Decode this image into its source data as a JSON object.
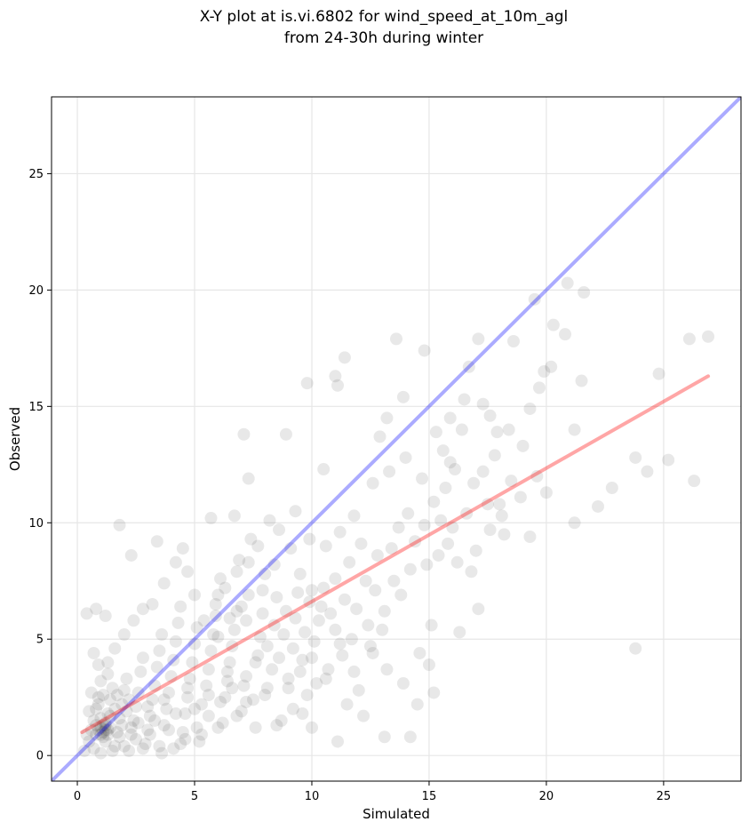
{
  "chart_data": {
    "type": "scatter",
    "title_line1": "X-Y plot at is.vi.6802 for wind_speed_at_10m_agl",
    "title_line2": "from 24-30h during winter",
    "xlabel": "Simulated",
    "ylabel": "Observed",
    "xlim": [
      -1.1,
      28.3
    ],
    "ylim": [
      -1.1,
      28.3
    ],
    "xticks": [
      0,
      5,
      10,
      15,
      20,
      25
    ],
    "yticks": [
      0,
      5,
      10,
      15,
      20,
      25
    ],
    "xtick_labels": [
      "0",
      "5",
      "10",
      "15",
      "20",
      "25"
    ],
    "ytick_labels": [
      "0",
      "5",
      "10",
      "15",
      "20",
      "25"
    ],
    "grid": true,
    "point_color": "#000000",
    "identity_line": {
      "color": "#0000ff",
      "x": [
        -1.1,
        28.3
      ],
      "y": [
        -1.1,
        28.3
      ]
    },
    "fit_line": {
      "color": "#ff0000",
      "x": [
        0.2,
        26.9
      ],
      "y": [
        1.0,
        16.3
      ]
    },
    "points": [
      [
        0.4,
        6.1
      ],
      [
        0.8,
        6.3
      ],
      [
        1.2,
        6.0
      ],
      [
        0.7,
        4.4
      ],
      [
        0.9,
        3.9
      ],
      [
        1.3,
        3.5
      ],
      [
        1.8,
        9.9
      ],
      [
        2.3,
        8.6
      ],
      [
        3.4,
        9.2
      ],
      [
        4.5,
        8.9
      ],
      [
        5.7,
        10.2
      ],
      [
        6.7,
        10.3
      ],
      [
        7.3,
        11.9
      ],
      [
        7.1,
        13.8
      ],
      [
        8.9,
        13.8
      ],
      [
        9.8,
        16.0
      ],
      [
        10.5,
        12.3
      ],
      [
        11.0,
        16.3
      ],
      [
        11.1,
        15.9
      ],
      [
        11.4,
        17.1
      ],
      [
        13.6,
        17.9
      ],
      [
        14.8,
        17.4
      ],
      [
        13.9,
        15.4
      ],
      [
        13.2,
        14.5
      ],
      [
        12.9,
        13.7
      ],
      [
        17.1,
        17.9
      ],
      [
        18.6,
        17.8
      ],
      [
        16.7,
        16.7
      ],
      [
        15.9,
        14.5
      ],
      [
        15.3,
        13.9
      ],
      [
        19.5,
        19.6
      ],
      [
        20.9,
        20.3
      ],
      [
        21.6,
        19.9
      ],
      [
        20.3,
        18.5
      ],
      [
        20.8,
        18.1
      ],
      [
        19.9,
        16.5
      ],
      [
        20.2,
        16.7
      ],
      [
        21.5,
        16.1
      ],
      [
        19.7,
        15.8
      ],
      [
        19.3,
        14.9
      ],
      [
        21.2,
        14.0
      ],
      [
        21.2,
        10.0
      ],
      [
        22.2,
        10.7
      ],
      [
        22.8,
        11.5
      ],
      [
        23.8,
        12.8
      ],
      [
        24.3,
        12.2
      ],
      [
        24.8,
        16.4
      ],
      [
        25.2,
        12.7
      ],
      [
        26.1,
        17.9
      ],
      [
        26.9,
        18.0
      ],
      [
        26.3,
        11.8
      ],
      [
        23.8,
        4.6
      ],
      [
        17.1,
        6.3
      ],
      [
        16.3,
        5.3
      ],
      [
        15.1,
        5.6
      ],
      [
        14.2,
        0.8
      ],
      [
        13.1,
        0.8
      ],
      [
        11.1,
        0.6
      ],
      [
        10.0,
        1.2
      ],
      [
        9.6,
        1.8
      ],
      [
        18.2,
        9.5
      ],
      [
        19.3,
        9.4
      ],
      [
        20.0,
        11.3
      ],
      [
        18.5,
        11.8
      ],
      [
        17.8,
        12.9
      ],
      [
        17.3,
        12.2
      ],
      [
        16.9,
        11.7
      ],
      [
        16.1,
        12.3
      ],
      [
        15.5,
        10.1
      ],
      [
        15.7,
        11.5
      ],
      [
        14.9,
        8.2
      ],
      [
        14.2,
        8.0
      ],
      [
        13.5,
        7.5
      ],
      [
        12.7,
        7.1
      ],
      [
        12.1,
        9.1
      ],
      [
        11.6,
        8.3
      ],
      [
        11.0,
        7.6
      ],
      [
        10.4,
        6.4
      ],
      [
        10.0,
        7.1
      ],
      [
        9.5,
        7.8
      ],
      [
        9.1,
        8.9
      ],
      [
        8.6,
        9.7
      ],
      [
        8.2,
        10.1
      ],
      [
        7.7,
        9.0
      ],
      [
        7.3,
        8.3
      ],
      [
        6.8,
        7.9
      ],
      [
        6.3,
        7.2
      ],
      [
        5.9,
        6.5
      ],
      [
        5.4,
        5.8
      ],
      [
        5.0,
        6.9
      ],
      [
        4.7,
        7.9
      ],
      [
        4.2,
        8.3
      ],
      [
        3.7,
        7.4
      ],
      [
        3.2,
        6.5
      ],
      [
        2.8,
        6.3
      ],
      [
        2.4,
        5.8
      ],
      [
        2.0,
        5.2
      ],
      [
        1.6,
        4.6
      ],
      [
        1.3,
        4.0
      ],
      [
        1.0,
        3.2
      ],
      [
        12.6,
        11.7
      ],
      [
        13.3,
        12.2
      ],
      [
        14.0,
        12.8
      ],
      [
        14.7,
        11.9
      ],
      [
        15.2,
        10.9
      ],
      [
        16.0,
        9.8
      ],
      [
        16.6,
        10.4
      ],
      [
        17.5,
        10.8
      ],
      [
        18.1,
        10.3
      ],
      [
        18.9,
        11.1
      ],
      [
        11.8,
        10.3
      ],
      [
        11.2,
        9.6
      ],
      [
        10.6,
        9.0
      ],
      [
        9.9,
        9.3
      ],
      [
        9.3,
        10.5
      ],
      [
        8.4,
        8.2
      ],
      [
        7.9,
        7.1
      ],
      [
        7.0,
        6.4
      ],
      [
        6.5,
        5.9
      ],
      [
        6.0,
        5.1
      ],
      [
        13.8,
        6.9
      ],
      [
        13.1,
        6.2
      ],
      [
        12.4,
        5.6
      ],
      [
        11.7,
        5.0
      ],
      [
        11.3,
        4.3
      ],
      [
        10.7,
        3.7
      ],
      [
        10.2,
        3.1
      ],
      [
        9.8,
        2.6
      ],
      [
        9.2,
        2.0
      ],
      [
        8.7,
        1.5
      ],
      [
        14.6,
        4.4
      ],
      [
        15.0,
        3.9
      ],
      [
        15.2,
        2.7
      ],
      [
        14.5,
        2.2
      ],
      [
        13.9,
        3.1
      ],
      [
        13.2,
        3.7
      ],
      [
        12.6,
        4.4
      ],
      [
        12.0,
        2.8
      ],
      [
        12.2,
        1.7
      ],
      [
        11.5,
        2.2
      ],
      [
        8.1,
        4.7
      ],
      [
        7.6,
        4.0
      ],
      [
        7.2,
        3.4
      ],
      [
        6.6,
        2.9
      ],
      [
        6.1,
        2.3
      ],
      [
        5.6,
        1.7
      ],
      [
        5.1,
        1.2
      ],
      [
        4.6,
        0.7
      ],
      [
        4.1,
        0.3
      ],
      [
        3.6,
        0.1
      ],
      [
        0.3,
        0.2
      ],
      [
        0.5,
        0.6
      ],
      [
        0.6,
        1.1
      ],
      [
        0.7,
        1.5
      ],
      [
        0.8,
        2.0
      ],
      [
        0.9,
        2.5
      ],
      [
        1.0,
        0.1
      ],
      [
        1.1,
        0.8
      ],
      [
        1.2,
        1.3
      ],
      [
        1.3,
        1.8
      ],
      [
        1.4,
        2.4
      ],
      [
        1.5,
        2.9
      ],
      [
        1.6,
        0.4
      ],
      [
        1.7,
        1.0
      ],
      [
        1.8,
        1.6
      ],
      [
        1.9,
        2.2
      ],
      [
        2.0,
        2.8
      ],
      [
        2.1,
        3.3
      ],
      [
        2.2,
        0.2
      ],
      [
        2.3,
        0.9
      ],
      [
        2.4,
        1.5
      ],
      [
        2.5,
        2.1
      ],
      [
        2.6,
        2.7
      ],
      [
        2.7,
        3.6
      ],
      [
        2.8,
        4.2
      ],
      [
        2.9,
        0.5
      ],
      [
        3.0,
        1.1
      ],
      [
        3.1,
        1.7
      ],
      [
        3.2,
        2.4
      ],
      [
        3.3,
        3.0
      ],
      [
        3.4,
        3.8
      ],
      [
        3.5,
        4.5
      ],
      [
        3.6,
        5.2
      ],
      [
        3.7,
        1.3
      ],
      [
        3.8,
        2.0
      ],
      [
        3.9,
        2.7
      ],
      [
        4.0,
        3.4
      ],
      [
        4.1,
        4.1
      ],
      [
        4.2,
        4.9
      ],
      [
        4.3,
        5.7
      ],
      [
        4.4,
        6.4
      ],
      [
        4.5,
        1.0
      ],
      [
        4.6,
        1.8
      ],
      [
        4.7,
        2.5
      ],
      [
        4.8,
        3.3
      ],
      [
        4.9,
        4.0
      ],
      [
        5.0,
        4.8
      ],
      [
        5.1,
        5.5
      ],
      [
        5.2,
        0.6
      ],
      [
        5.3,
        2.2
      ],
      [
        5.5,
        3.0
      ],
      [
        5.6,
        3.7
      ],
      [
        5.7,
        4.5
      ],
      [
        5.8,
        5.2
      ],
      [
        5.9,
        6.0
      ],
      [
        6.0,
        6.9
      ],
      [
        6.1,
        7.6
      ],
      [
        6.2,
        1.4
      ],
      [
        6.3,
        2.5
      ],
      [
        6.4,
        3.2
      ],
      [
        6.5,
        4.0
      ],
      [
        6.6,
        4.7
      ],
      [
        6.7,
        5.4
      ],
      [
        6.8,
        6.2
      ],
      [
        6.9,
        8.4
      ],
      [
        7.0,
        1.9
      ],
      [
        7.1,
        3.0
      ],
      [
        7.2,
        5.8
      ],
      [
        7.3,
        6.9
      ],
      [
        7.4,
        9.3
      ],
      [
        7.5,
        2.4
      ],
      [
        7.7,
        4.3
      ],
      [
        7.8,
        5.1
      ],
      [
        7.9,
        6.1
      ],
      [
        8.0,
        7.8
      ],
      [
        8.1,
        2.9
      ],
      [
        8.3,
        3.7
      ],
      [
        8.4,
        5.6
      ],
      [
        8.5,
        6.8
      ],
      [
        8.6,
        4.2
      ],
      [
        8.8,
        5.2
      ],
      [
        8.9,
        6.2
      ],
      [
        9.0,
        3.3
      ],
      [
        9.2,
        4.6
      ],
      [
        9.3,
        5.9
      ],
      [
        9.4,
        7.0
      ],
      [
        9.6,
        4.1
      ],
      [
        9.7,
        5.3
      ],
      [
        9.9,
        6.6
      ],
      [
        10.1,
        4.9
      ],
      [
        10.3,
        5.8
      ],
      [
        10.5,
        7.2
      ],
      [
        10.8,
        6.1
      ],
      [
        11.0,
        5.4
      ],
      [
        11.4,
        6.7
      ],
      [
        11.9,
        6.3
      ],
      [
        12.3,
        7.5
      ],
      [
        12.8,
        8.6
      ],
      [
        13.4,
        8.9
      ],
      [
        13.7,
        9.8
      ],
      [
        14.1,
        10.4
      ],
      [
        14.4,
        9.2
      ],
      [
        14.8,
        9.9
      ],
      [
        15.4,
        8.6
      ],
      [
        15.8,
        9.1
      ],
      [
        16.2,
        8.3
      ],
      [
        16.8,
        7.9
      ],
      [
        17.0,
        8.8
      ],
      [
        17.6,
        9.7
      ],
      [
        18.0,
        10.8
      ],
      [
        0.4,
        0.9
      ],
      [
        0.5,
        1.9
      ],
      [
        0.6,
        2.7
      ],
      [
        0.7,
        0.3
      ],
      [
        0.8,
        1.3
      ],
      [
        0.9,
        2.2
      ],
      [
        1.0,
        1.6
      ],
      [
        1.1,
        2.6
      ],
      [
        1.2,
        0.6
      ],
      [
        1.3,
        1.1
      ],
      [
        1.4,
        1.7
      ],
      [
        1.5,
        0.2
      ],
      [
        1.6,
        2.0
      ],
      [
        1.7,
        2.6
      ],
      [
        1.8,
        0.8
      ],
      [
        1.9,
        1.3
      ],
      [
        2.0,
        0.4
      ],
      [
        2.1,
        1.9
      ],
      [
        2.2,
        2.4
      ],
      [
        2.3,
        1.2
      ],
      [
        2.5,
        0.7
      ],
      [
        2.6,
        1.4
      ],
      [
        2.8,
        0.3
      ],
      [
        3.0,
        2.1
      ],
      [
        3.1,
        0.9
      ],
      [
        3.3,
        1.5
      ],
      [
        3.5,
        0.4
      ],
      [
        3.7,
        2.4
      ],
      [
        3.9,
        1.1
      ],
      [
        4.2,
        1.8
      ],
      [
        4.4,
        0.5
      ],
      [
        4.7,
        2.9
      ],
      [
        5.0,
        2.0
      ],
      [
        5.3,
        0.9
      ],
      [
        5.6,
        2.6
      ],
      [
        6.0,
        1.2
      ],
      [
        6.4,
        3.6
      ],
      [
        6.8,
        1.7
      ],
      [
        7.2,
        2.3
      ],
      [
        7.6,
        1.2
      ],
      [
        8.0,
        2.6
      ],
      [
        8.5,
        1.3
      ],
      [
        9.0,
        2.9
      ],
      [
        9.5,
        3.6
      ],
      [
        10.0,
        4.2
      ],
      [
        10.6,
        3.3
      ],
      [
        11.2,
        4.8
      ],
      [
        11.8,
        3.6
      ],
      [
        12.5,
        4.7
      ],
      [
        13.0,
        5.4
      ],
      [
        1.0,
        1.2
      ],
      [
        1.1,
        1.0
      ],
      [
        1.2,
        1.4
      ],
      [
        1.3,
        0.9
      ],
      [
        0.9,
        1.1
      ],
      [
        1.0,
        0.9
      ],
      [
        1.4,
        1.2
      ],
      [
        0.8,
        0.9
      ],
      [
        1.2,
        1.1
      ],
      [
        1.1,
        1.3
      ],
      [
        16.5,
        15.3
      ],
      [
        17.3,
        15.1
      ],
      [
        17.9,
        13.9
      ],
      [
        18.4,
        14.0
      ],
      [
        19.0,
        13.3
      ],
      [
        16.4,
        14.0
      ],
      [
        15.6,
        13.1
      ],
      [
        15.9,
        12.6
      ],
      [
        17.6,
        14.6
      ],
      [
        19.6,
        12.0
      ]
    ]
  }
}
